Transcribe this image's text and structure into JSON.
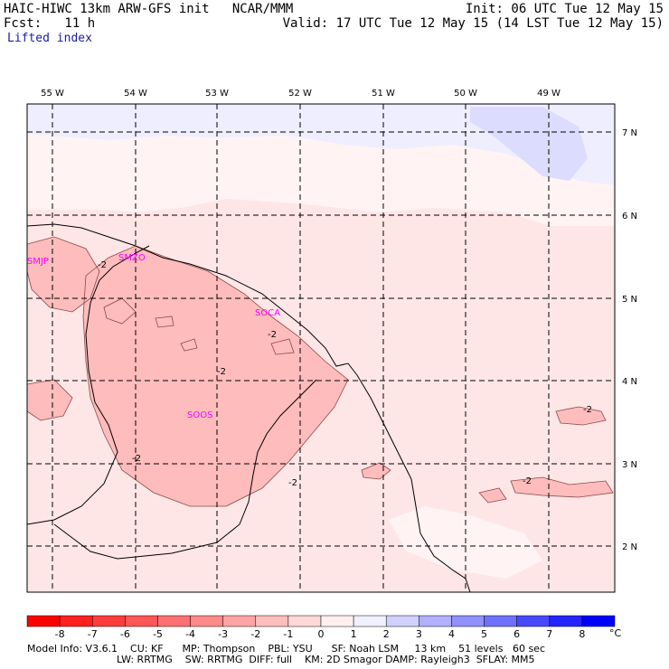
{
  "header": {
    "title": "HAIC-HIWC 13km ARW-GFS init   NCAR/MMM",
    "fcst": "Fcst:   11 h",
    "field": "Lifted index",
    "init": "Init: 06 UTC Tue 12 May 15",
    "valid": "Valid: 17 UTC Tue 12 May 15 (14 LST Tue 12 May 15)"
  },
  "map": {
    "lon_labels": [
      "55 W",
      "54 W",
      "53 W",
      "52 W",
      "51 W",
      "50 W",
      "49 W"
    ],
    "lat_labels": [
      "7 N",
      "6 N",
      "5 N",
      "4 N",
      "3 N",
      "2 N"
    ],
    "stations": [
      "SMJP",
      "SMZO",
      "SOCA",
      "SOOS"
    ],
    "contour_labels": [
      "-2",
      "-2",
      "-2",
      "-2",
      "-2",
      "-2",
      "-2"
    ],
    "colors": {
      "land_border": "#000000",
      "grid": "#000000",
      "station": "#ff00ff"
    }
  },
  "colorbar": {
    "unit": "°C",
    "ticks": [
      "-8",
      "-7",
      "-6",
      "-5",
      "-4",
      "-3",
      "-2",
      "-1",
      "0",
      "1",
      "2",
      "3",
      "4",
      "5",
      "6",
      "7",
      "8"
    ],
    "colors": [
      "#ff0000",
      "#ff2020",
      "#ff3c3c",
      "#ff5656",
      "#ff7070",
      "#ff8a8a",
      "#ffa4a4",
      "#ffbebe",
      "#ffd8d8",
      "#fff0f0",
      "#f0f0ff",
      "#d0d0ff",
      "#b0b0ff",
      "#9090ff",
      "#7070ff",
      "#4848ff",
      "#2424ff",
      "#0000ff"
    ]
  },
  "footer": {
    "line1": "Model Info: V3.6.1    CU: KF      MP: Thompson    PBL: YSU      SF: Noah LSM     13 km    51 levels   60 sec",
    "line2": "LW: RRTMG    SW: RRTMG  DIFF: full    KM: 2D Smagor DAMP: Rayleigh3  SFLAY: MM5"
  }
}
